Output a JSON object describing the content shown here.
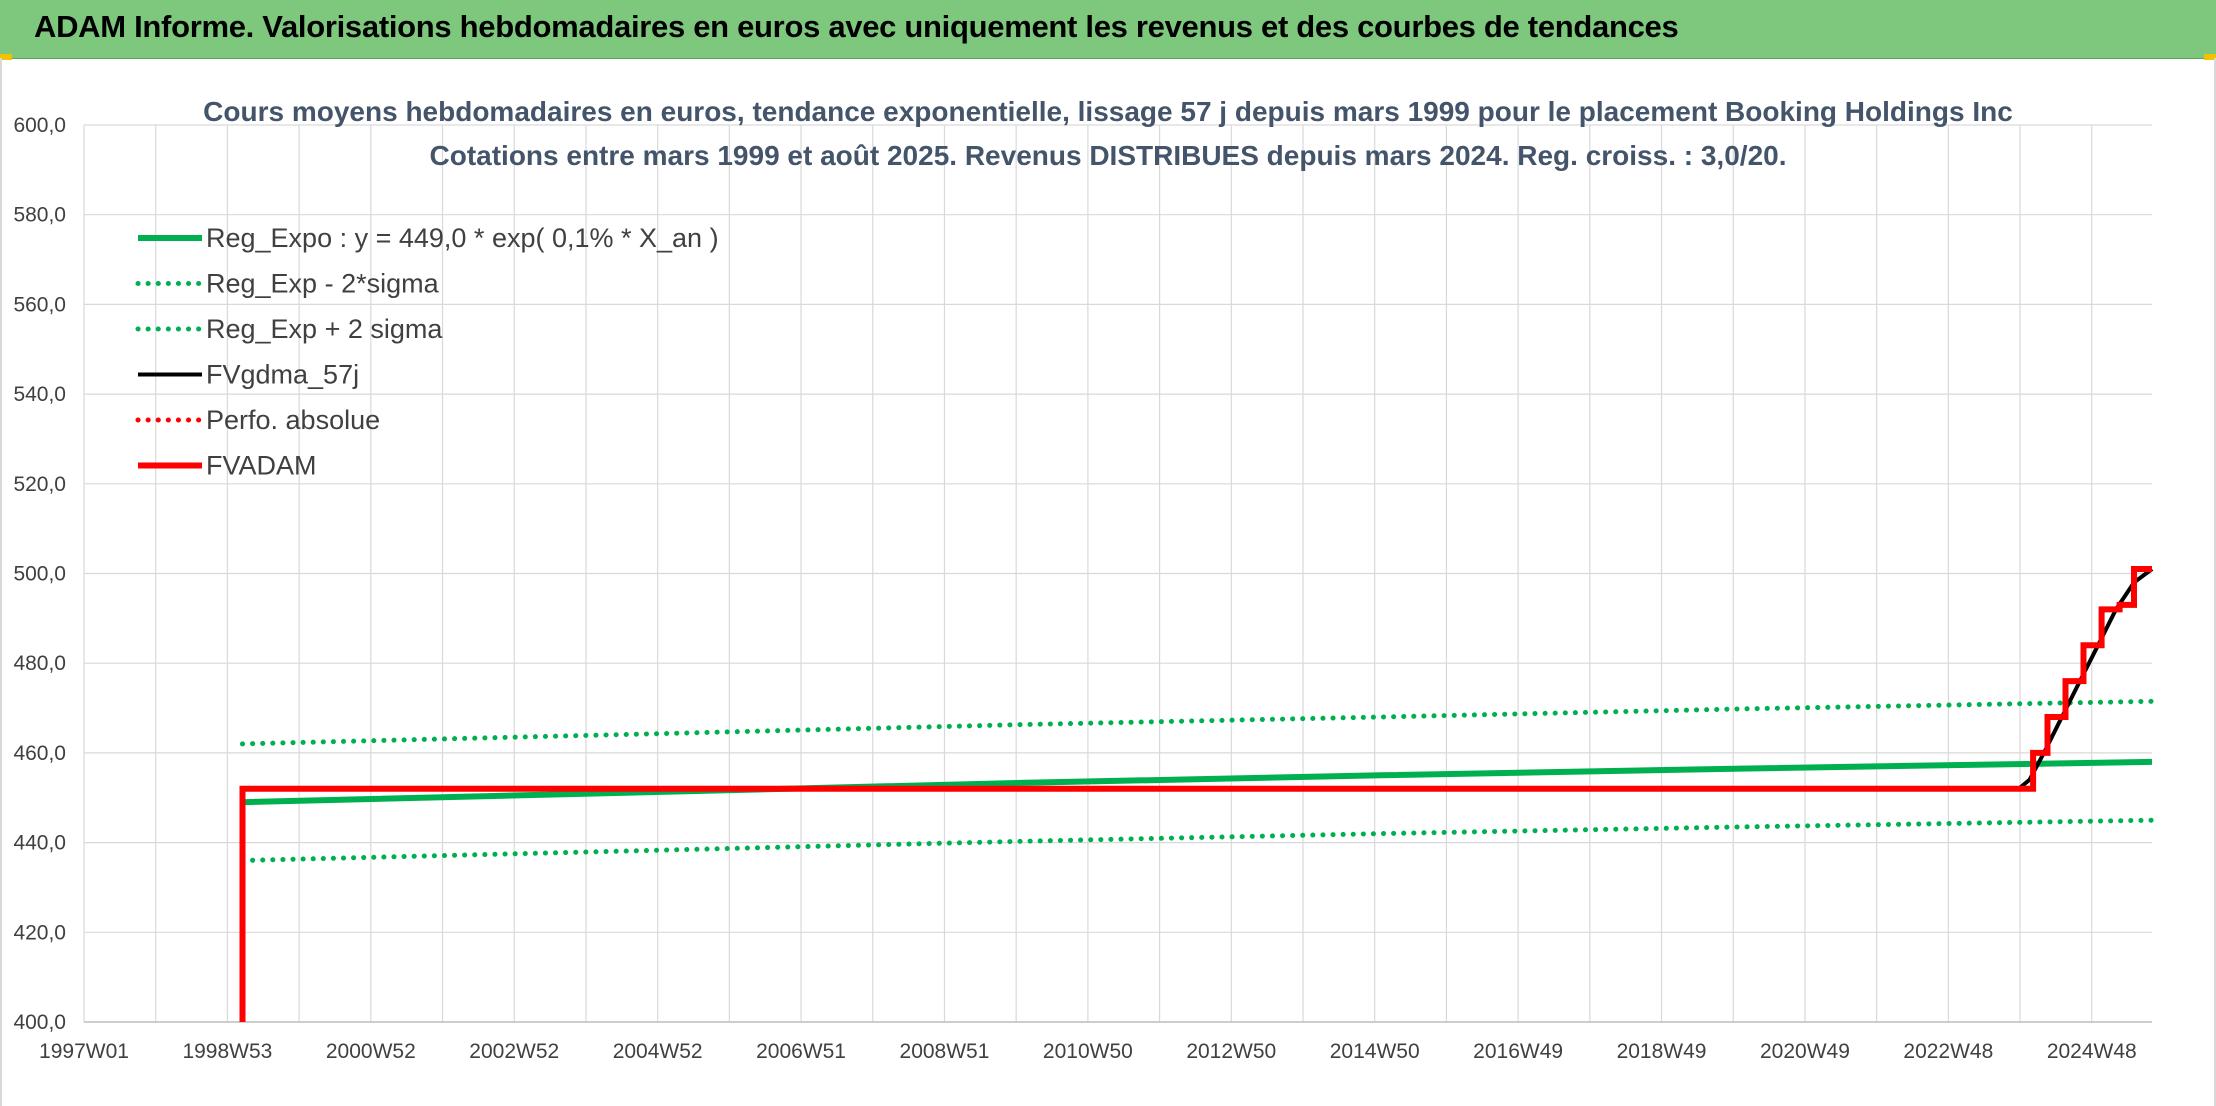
{
  "header": {
    "title": "ADAM Informe. Valorisations hebdomadaires en euros avec uniquement les revenus et des courbes de tendances"
  },
  "colors": {
    "banner": "#7ec87e",
    "green": "#00b050",
    "red": "#ff0000",
    "black": "#000000",
    "grid": "#d9d9d9",
    "title": "#44546a"
  },
  "chart_data": {
    "type": "line",
    "title": "Cours moyens hebdomadaires en euros, tendance exponentielle, lissage 57 j depuis mars 1999 pour le placement Booking Holdings Inc",
    "subtitle": "Cotations entre mars 1999 et août 2025. Revenus DISTRIBUES depuis mars 2024. Reg. croiss. : 3,0/20.",
    "xlabel": "",
    "ylabel": "",
    "ylim": [
      400,
      600
    ],
    "xlim": [
      1997.0,
      2025.7
    ],
    "y_ticks": [
      "600,0",
      "580,0",
      "560,0",
      "540,0",
      "520,0",
      "500,0",
      "480,0",
      "460,0",
      "440,0",
      "420,0",
      "400,0"
    ],
    "x_ticks": [
      "1997W01",
      "1998W53",
      "2000W52",
      "2002W52",
      "2004W52",
      "2006W51",
      "2008W51",
      "2010W50",
      "2012W50",
      "2014W50",
      "2016W49",
      "2018W49",
      "2020W49",
      "2022W48",
      "2024W48"
    ],
    "grid": true,
    "legend_position": "top-left",
    "series": [
      {
        "name": "Reg_Expo : y = 449,0 * exp( 0,1% *  X_an )",
        "style": "solid-thick",
        "color": "#00b050",
        "x": [
          1999.2,
          2005.0,
          2010.0,
          2015.0,
          2020.0,
          2025.7
        ],
        "y": [
          449.0,
          451.3,
          453.3,
          455.0,
          456.5,
          458.0
        ]
      },
      {
        "name": "Reg_Exp - 2*sigma",
        "style": "dotted",
        "color": "#00b050",
        "x": [
          1999.2,
          2005.0,
          2010.0,
          2015.0,
          2020.0,
          2025.7
        ],
        "y": [
          436.0,
          438.3,
          440.3,
          442.0,
          443.5,
          445.0
        ]
      },
      {
        "name": "Reg_Exp + 2 sigma",
        "style": "dotted",
        "color": "#00b050",
        "x": [
          1999.2,
          2005.0,
          2010.0,
          2015.0,
          2020.0,
          2025.7
        ],
        "y": [
          462.0,
          464.3,
          466.3,
          468.0,
          469.8,
          471.5
        ]
      },
      {
        "name": "FVgdma_57j",
        "style": "solid",
        "color": "#000000",
        "x": [
          1999.2,
          2023.85,
          2024.0,
          2024.2,
          2024.45,
          2024.7,
          2024.95,
          2025.2,
          2025.45,
          2025.7
        ],
        "y": [
          452.0,
          452.0,
          454.0,
          460.0,
          468.0,
          476.0,
          484.0,
          492.0,
          498.0,
          501.0
        ]
      },
      {
        "name": "Perfo. absolue",
        "style": "dotted",
        "color": "#ff0000",
        "x": [],
        "y": []
      },
      {
        "name": "FVADAM",
        "style": "step-thick",
        "color": "#ff0000",
        "x": [
          1999.2,
          1999.2,
          2024.05,
          2024.05,
          2024.25,
          2024.25,
          2024.5,
          2024.5,
          2024.75,
          2024.75,
          2025.0,
          2025.0,
          2025.25,
          2025.25,
          2025.45,
          2025.45,
          2025.7
        ],
        "y": [
          400.0,
          452.0,
          452.0,
          460.0,
          460.0,
          468.0,
          468.0,
          476.0,
          476.0,
          484.0,
          484.0,
          492.0,
          492.0,
          493.0,
          493.0,
          501.0,
          501.0
        ]
      }
    ]
  }
}
